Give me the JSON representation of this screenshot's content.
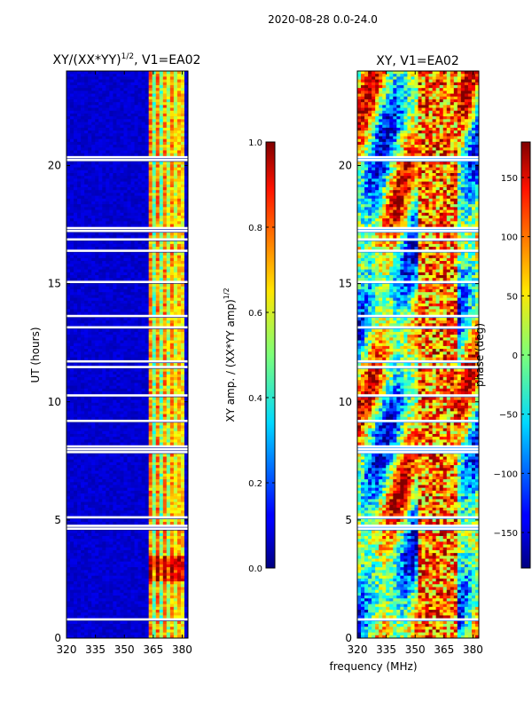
{
  "suptitle": "2020-08-28 0.0-24.0",
  "xlabel": "frequency (MHz)",
  "chart_data": [
    {
      "type": "heatmap",
      "title_main": "XY/(XX*YY)",
      "title_sup": "1/2",
      "title_rest": ", V1=EA02",
      "ylabel": "UT (hours)",
      "xlim": [
        320,
        383
      ],
      "ylim": [
        0,
        24
      ],
      "xticks": [
        320,
        335,
        350,
        365,
        380
      ],
      "yticks": [
        0,
        5,
        10,
        15,
        20
      ],
      "colorbar": {
        "label_main": "XY amp. / (XX*YY amp)",
        "label_sup": "1/2",
        "range": [
          0.0,
          1.0
        ],
        "ticks": [
          "0.0",
          "0.2",
          "0.4",
          "0.6",
          "0.8",
          "1.0"
        ],
        "colormap": "jet"
      }
    },
    {
      "type": "heatmap",
      "title_main": "XY, V1=EA02",
      "xlim": [
        320,
        383
      ],
      "ylim": [
        0,
        24
      ],
      "xticks": [
        320,
        335,
        350,
        365,
        380
      ],
      "yticks": [
        0,
        5,
        10,
        15,
        20
      ],
      "colorbar": {
        "label_main": "phase (deg)",
        "range": [
          -180,
          180
        ],
        "ticks": [
          "150",
          "100",
          "50",
          "0",
          "−50",
          "−100",
          "−150"
        ],
        "colormap": "jet"
      }
    }
  ]
}
